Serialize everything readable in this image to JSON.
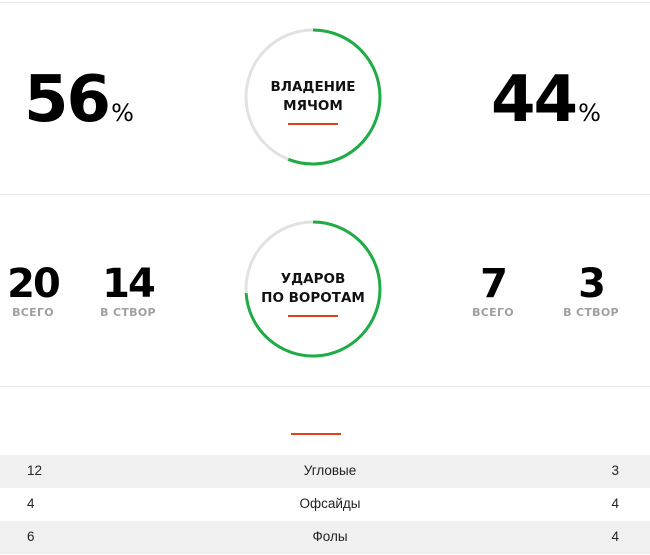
{
  "possession": {
    "home": "56",
    "away": "44",
    "unit": "%",
    "label_line1": "ВЛАДЕНИЕ",
    "label_line2": "МЯЧОМ",
    "home_fraction": 0.56
  },
  "shots": {
    "label_line1": "УДАРОВ",
    "label_line2": "ПО ВОРОТАМ",
    "home_total": "20",
    "home_on_target": "14",
    "away_total": "7",
    "away_on_target": "3",
    "total_caption": "ВСЕГО",
    "on_target_caption": "В СТВОР",
    "home_fraction": 0.74
  },
  "stats": [
    {
      "home": "12",
      "label": "Угловые",
      "away": "3"
    },
    {
      "home": "4",
      "label": "Офсайды",
      "away": "4"
    },
    {
      "home": "6",
      "label": "Фолы",
      "away": "4"
    }
  ],
  "colors": {
    "ring_home": "#1fab45",
    "ring_track": "#e2e2e2",
    "accent_line": "#e0401c"
  }
}
